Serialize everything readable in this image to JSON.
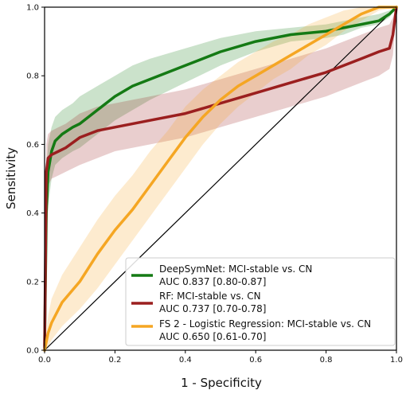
{
  "chart_data": {
    "type": "line",
    "title": "",
    "xlabel": "1 - Specificity",
    "ylabel": "Sensitivity",
    "xlim": [
      0.0,
      1.0
    ],
    "ylim": [
      0.0,
      1.0
    ],
    "xticks": [
      "0.0",
      "0.2",
      "0.4",
      "0.6",
      "0.8",
      "1.0"
    ],
    "yticks": [
      "0.0",
      "0.2",
      "0.4",
      "0.6",
      "0.8",
      "1.0"
    ],
    "grid": false,
    "legend_position": "lower-right",
    "diagonal": {
      "x": [
        0.0,
        1.0
      ],
      "y": [
        0.0,
        1.0
      ],
      "color": "#000000"
    },
    "series": [
      {
        "name": "DeepSymNet: MCI-stable vs. CN",
        "auc_label": "AUC 0.837 [0.80-0.87]",
        "color": "#147a14",
        "x": [
          0.0,
          0.005,
          0.01,
          0.02,
          0.03,
          0.05,
          0.08,
          0.1,
          0.15,
          0.2,
          0.25,
          0.3,
          0.4,
          0.5,
          0.6,
          0.7,
          0.8,
          0.85,
          0.9,
          0.95,
          0.98,
          1.0
        ],
        "y": [
          0.0,
          0.4,
          0.52,
          0.58,
          0.61,
          0.63,
          0.65,
          0.66,
          0.7,
          0.74,
          0.77,
          0.79,
          0.83,
          0.87,
          0.9,
          0.92,
          0.93,
          0.94,
          0.95,
          0.96,
          0.98,
          1.0
        ],
        "lower": [
          0.0,
          0.3,
          0.42,
          0.5,
          0.54,
          0.56,
          0.58,
          0.59,
          0.63,
          0.67,
          0.7,
          0.73,
          0.78,
          0.83,
          0.87,
          0.9,
          0.91,
          0.92,
          0.94,
          0.95,
          0.97,
          1.0
        ],
        "upper": [
          0.0,
          0.52,
          0.6,
          0.65,
          0.68,
          0.7,
          0.72,
          0.74,
          0.77,
          0.8,
          0.83,
          0.85,
          0.88,
          0.91,
          0.93,
          0.94,
          0.95,
          0.96,
          0.97,
          0.98,
          0.99,
          1.0
        ]
      },
      {
        "name": "RF: MCI-stable vs. CN",
        "auc_label": "AUC 0.737 [0.70-0.78]",
        "color": "#9b1f1f",
        "x": [
          0.0,
          0.005,
          0.01,
          0.02,
          0.04,
          0.06,
          0.1,
          0.15,
          0.2,
          0.3,
          0.4,
          0.5,
          0.6,
          0.7,
          0.8,
          0.9,
          0.95,
          0.98,
          0.99,
          1.0
        ],
        "y": [
          0.0,
          0.52,
          0.56,
          0.57,
          0.58,
          0.59,
          0.62,
          0.64,
          0.65,
          0.67,
          0.69,
          0.72,
          0.75,
          0.78,
          0.81,
          0.85,
          0.87,
          0.88,
          0.92,
          1.0
        ],
        "lower": [
          0.0,
          0.42,
          0.48,
          0.5,
          0.51,
          0.52,
          0.54,
          0.56,
          0.58,
          0.6,
          0.62,
          0.65,
          0.68,
          0.71,
          0.74,
          0.78,
          0.8,
          0.82,
          0.86,
          1.0
        ],
        "upper": [
          0.0,
          0.6,
          0.63,
          0.64,
          0.65,
          0.66,
          0.69,
          0.71,
          0.72,
          0.74,
          0.76,
          0.79,
          0.82,
          0.85,
          0.88,
          0.92,
          0.94,
          0.95,
          0.97,
          1.0
        ]
      },
      {
        "name": "FS 2 - Logistic Regression: MCI-stable vs. CN",
        "auc_label": "AUC 0.650 [0.61-0.70]",
        "color": "#f5a623",
        "x": [
          0.0,
          0.01,
          0.02,
          0.05,
          0.1,
          0.15,
          0.2,
          0.25,
          0.3,
          0.35,
          0.4,
          0.45,
          0.5,
          0.55,
          0.6,
          0.65,
          0.7,
          0.75,
          0.8,
          0.85,
          0.9,
          0.95,
          1.0
        ],
        "y": [
          0.0,
          0.05,
          0.08,
          0.14,
          0.2,
          0.28,
          0.35,
          0.41,
          0.48,
          0.55,
          0.62,
          0.68,
          0.73,
          0.77,
          0.8,
          0.83,
          0.86,
          0.89,
          0.92,
          0.95,
          0.98,
          1.0,
          1.0
        ],
        "lower": [
          0.0,
          0.01,
          0.03,
          0.07,
          0.12,
          0.18,
          0.25,
          0.32,
          0.39,
          0.46,
          0.53,
          0.6,
          0.66,
          0.71,
          0.75,
          0.79,
          0.82,
          0.86,
          0.89,
          0.93,
          0.96,
          0.99,
          1.0
        ],
        "upper": [
          0.0,
          0.1,
          0.15,
          0.22,
          0.3,
          0.38,
          0.45,
          0.51,
          0.58,
          0.64,
          0.71,
          0.76,
          0.8,
          0.84,
          0.87,
          0.9,
          0.92,
          0.95,
          0.97,
          0.99,
          1.0,
          1.0,
          1.0
        ]
      }
    ]
  }
}
